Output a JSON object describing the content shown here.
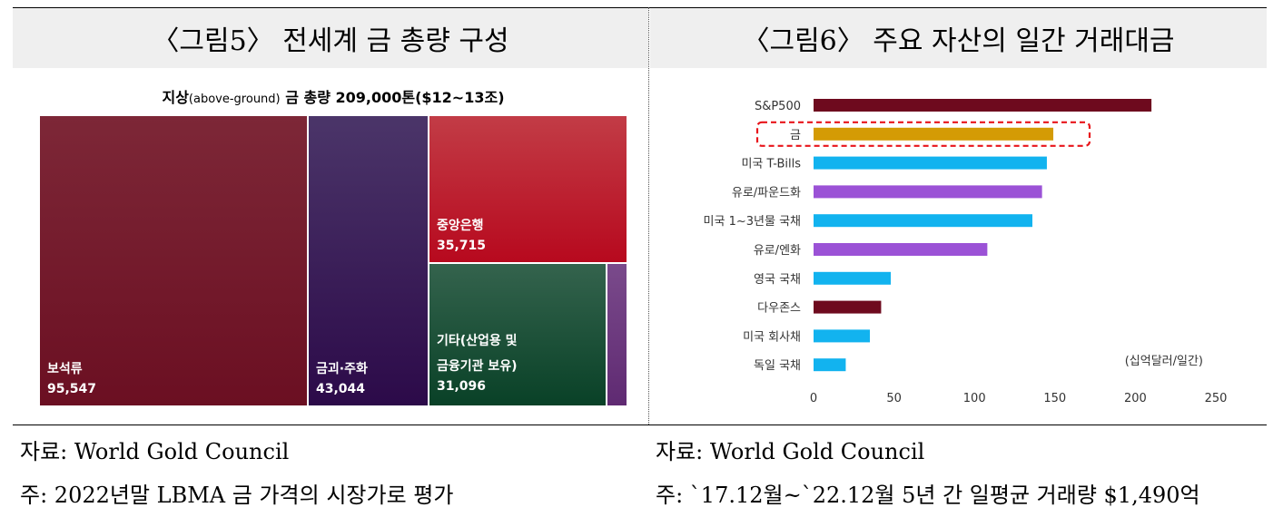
{
  "panels": {
    "left": {
      "title": "〈그림5〉 전세계 금 총량 구성",
      "source": "자료: World Gold Council",
      "note": "주: 2022년말 LBMA 금 가격의 시장가로 평가"
    },
    "right": {
      "title": "〈그림6〉 주요 자산의 일간 거래대금",
      "source": "자료: World Gold Council",
      "note": "주: `17.12월~`22.12월 5년 간 일평균 거래량 $1,490억"
    }
  },
  "chart_data": [
    {
      "type": "treemap",
      "title_bold_1": "지상",
      "title_small": "(above-ground)",
      "title_bold_2": " 금 총량 209,000톤($12~13조)",
      "items": [
        {
          "name": "보석류",
          "value": 95547,
          "value_label": "95,547",
          "color": "#7a1d2c"
        },
        {
          "name": "금괴·주화",
          "value": 43044,
          "value_label": "43,044",
          "color": "#3f1f5e"
        },
        {
          "name": "중앙은행",
          "value": 35715,
          "value_label": "35,715",
          "color": "#b81a2c"
        },
        {
          "name_line1": "기타(산업용 및",
          "name_line2": "금융기관 보유)",
          "value": 31096,
          "value_label": "31,096",
          "color": "#1d5a3e"
        },
        {
          "name": "",
          "value": 3600,
          "value_label": "",
          "color": "#6b3a7c"
        }
      ]
    },
    {
      "type": "bar",
      "orientation": "horizontal",
      "unit_label": "(십억달러/일간)",
      "categories": [
        "S&P500",
        "금",
        "미국 T-Bills",
        "유로/파운드화",
        "미국 1~3년물 국채",
        "유로/엔화",
        "영국 국채",
        "다우존스",
        "미국 회사채",
        "독일 국채"
      ],
      "values": [
        210,
        149,
        145,
        142,
        136,
        108,
        48,
        42,
        35,
        20
      ],
      "colors": [
        "#6e0a1e",
        "#d49b05",
        "#12b3ef",
        "#9b52d6",
        "#12b3ef",
        "#9b52d6",
        "#12b3ef",
        "#6e0a1e",
        "#12b3ef",
        "#12b3ef"
      ],
      "highlight_index": 1,
      "highlight_color": "#e8151b",
      "xlim": [
        0,
        250
      ],
      "xticks": [
        "0",
        "50",
        "100",
        "150",
        "200",
        "250"
      ]
    }
  ]
}
